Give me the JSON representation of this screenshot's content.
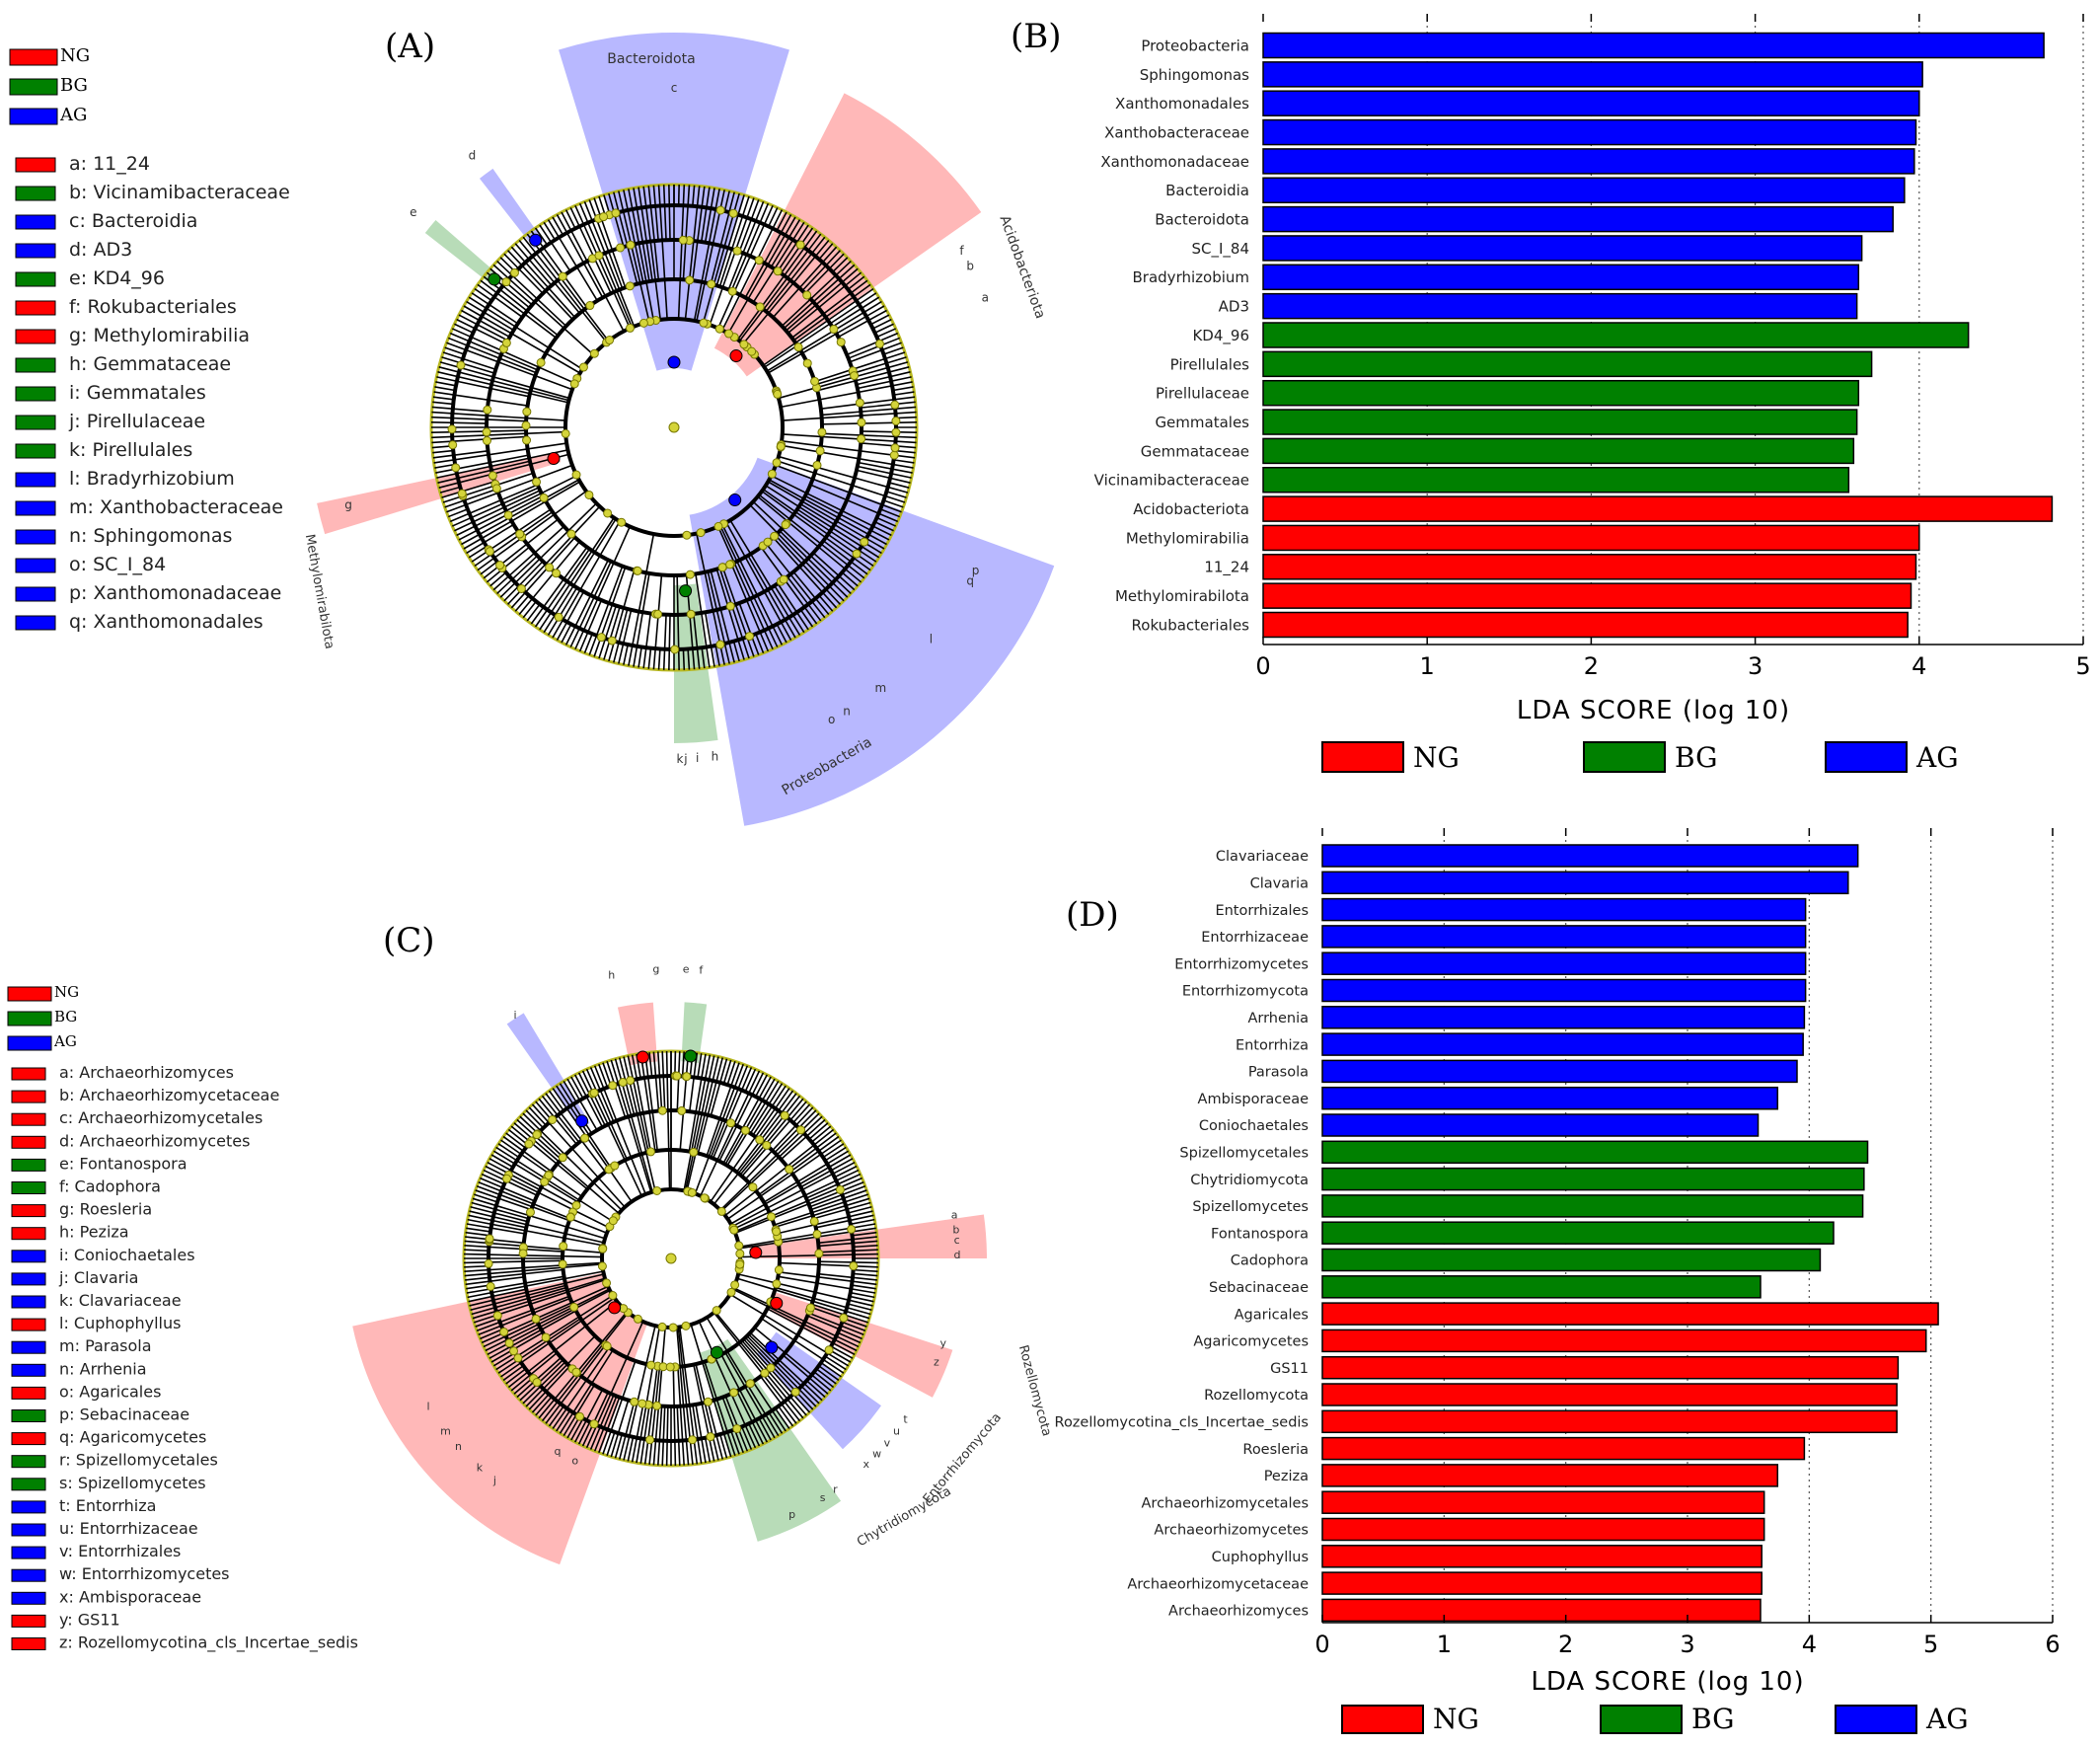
{
  "colors": {
    "NG": "#ff0000",
    "BG": "#008000",
    "AG": "#0000ff"
  },
  "panels": {
    "A": {
      "label": "(A)",
      "group_legend": [
        {
          "label": "NG",
          "group": "NG"
        },
        {
          "label": "BG",
          "group": "BG"
        },
        {
          "label": "AG",
          "group": "AG"
        }
      ],
      "taxa_legend": [
        {
          "label": "a: 11_24",
          "group": "NG"
        },
        {
          "label": "b: Vicinamibacteraceae",
          "group": "BG"
        },
        {
          "label": "c: Bacteroidia",
          "group": "AG"
        },
        {
          "label": "d: AD3",
          "group": "AG"
        },
        {
          "label": "e: KD4_96",
          "group": "BG"
        },
        {
          "label": "f: Rokubacteriales",
          "group": "NG"
        },
        {
          "label": "g: Methylomirabilia",
          "group": "NG"
        },
        {
          "label": "h: Gemmataceae",
          "group": "BG"
        },
        {
          "label": "i: Gemmatales",
          "group": "BG"
        },
        {
          "label": "j: Pirellulaceae",
          "group": "BG"
        },
        {
          "label": "k: Pirellulales",
          "group": "BG"
        },
        {
          "label": "l: Bradyrhizobium",
          "group": "AG"
        },
        {
          "label": "m: Xanthobacteraceae",
          "group": "AG"
        },
        {
          "label": "n: Sphingomonas",
          "group": "AG"
        },
        {
          "label": "o: SC_I_84",
          "group": "AG"
        },
        {
          "label": "p: Xanthomonadaceae",
          "group": "AG"
        },
        {
          "label": "q: Xanthomonadales",
          "group": "AG"
        }
      ],
      "clado_labels": [
        "Bacteroidota",
        "Acidobacteriota",
        "Proteobacteria",
        "Methylomirabilota"
      ],
      "clado_letters": [
        "a",
        "b",
        "c",
        "d",
        "e",
        "f",
        "g",
        "h",
        "i",
        "j",
        "k",
        "l",
        "m",
        "n",
        "o",
        "p",
        "q"
      ]
    },
    "C": {
      "label": "(C)",
      "group_legend": [
        {
          "label": "NG",
          "group": "NG"
        },
        {
          "label": "BG",
          "group": "BG"
        },
        {
          "label": "AG",
          "group": "AG"
        }
      ],
      "taxa_legend": [
        {
          "label": "a: Archaeorhizomyces",
          "group": "NG"
        },
        {
          "label": "b: Archaeorhizomycetaceae",
          "group": "NG"
        },
        {
          "label": "c: Archaeorhizomycetales",
          "group": "NG"
        },
        {
          "label": "d: Archaeorhizomycetes",
          "group": "NG"
        },
        {
          "label": "e: Fontanospora",
          "group": "BG"
        },
        {
          "label": "f: Cadophora",
          "group": "BG"
        },
        {
          "label": "g: Roesleria",
          "group": "NG"
        },
        {
          "label": "h: Peziza",
          "group": "NG"
        },
        {
          "label": "i: Coniochaetales",
          "group": "AG"
        },
        {
          "label": "j: Clavaria",
          "group": "AG"
        },
        {
          "label": "k: Clavariaceae",
          "group": "AG"
        },
        {
          "label": "l: Cuphophyllus",
          "group": "NG"
        },
        {
          "label": "m: Parasola",
          "group": "AG"
        },
        {
          "label": "n: Arrhenia",
          "group": "AG"
        },
        {
          "label": "o: Agaricales",
          "group": "NG"
        },
        {
          "label": "p: Sebacinaceae",
          "group": "BG"
        },
        {
          "label": "q: Agaricomycetes",
          "group": "NG"
        },
        {
          "label": "r: Spizellomycetales",
          "group": "BG"
        },
        {
          "label": "s: Spizellomycetes",
          "group": "BG"
        },
        {
          "label": "t: Entorrhiza",
          "group": "AG"
        },
        {
          "label": "u: Entorrhizaceae",
          "group": "AG"
        },
        {
          "label": "v: Entorrhizales",
          "group": "AG"
        },
        {
          "label": "w: Entorrhizomycetes",
          "group": "AG"
        },
        {
          "label": "x: Ambisporaceae",
          "group": "AG"
        },
        {
          "label": "y: GS11",
          "group": "NG"
        },
        {
          "label": "z: Rozellomycotina_cls_Incertae_sedis",
          "group": "NG"
        }
      ],
      "clado_labels": [
        "Rozellomycota",
        "Entorrhizomycota",
        "Chytridiomycota"
      ],
      "clado_letters": [
        "a",
        "b",
        "c",
        "d",
        "e",
        "f",
        "g",
        "h",
        "i",
        "j",
        "k",
        "l",
        "m",
        "n",
        "o",
        "p",
        "q",
        "r",
        "s",
        "t",
        "u",
        "v",
        "w",
        "x",
        "y",
        "z"
      ]
    },
    "B": {
      "label": "(B)"
    },
    "D": {
      "label": "(D)"
    }
  },
  "chart_data": [
    {
      "panel": "B",
      "type": "bar",
      "orientation": "horizontal",
      "xlabel": "LDA SCORE (log 10)",
      "xlim": [
        0,
        5
      ],
      "xticks": [
        0,
        1,
        2,
        3,
        4,
        5
      ],
      "legend": [
        "NG",
        "BG",
        "AG"
      ],
      "bars": [
        {
          "label": "Proteobacteria",
          "value": 4.76,
          "group": "AG"
        },
        {
          "label": "Sphingomonas",
          "value": 4.02,
          "group": "AG"
        },
        {
          "label": "Xanthomonadales",
          "value": 4.0,
          "group": "AG"
        },
        {
          "label": "Xanthobacteraceae",
          "value": 3.98,
          "group": "AG"
        },
        {
          "label": "Xanthomonadaceae",
          "value": 3.97,
          "group": "AG"
        },
        {
          "label": "Bacteroidia",
          "value": 3.91,
          "group": "AG"
        },
        {
          "label": "Bacteroidota",
          "value": 3.84,
          "group": "AG"
        },
        {
          "label": "SC_I_84",
          "value": 3.65,
          "group": "AG"
        },
        {
          "label": "Bradyrhizobium",
          "value": 3.63,
          "group": "AG"
        },
        {
          "label": "AD3",
          "value": 3.62,
          "group": "AG"
        },
        {
          "label": "KD4_96",
          "value": 4.3,
          "group": "BG"
        },
        {
          "label": "Pirellulales",
          "value": 3.71,
          "group": "BG"
        },
        {
          "label": "Pirellulaceae",
          "value": 3.63,
          "group": "BG"
        },
        {
          "label": "Gemmatales",
          "value": 3.62,
          "group": "BG"
        },
        {
          "label": "Gemmataceae",
          "value": 3.6,
          "group": "BG"
        },
        {
          "label": "Vicinamibacteraceae",
          "value": 3.57,
          "group": "BG"
        },
        {
          "label": "Acidobacteriota",
          "value": 4.81,
          "group": "NG"
        },
        {
          "label": "Methylomirabilia",
          "value": 4.0,
          "group": "NG"
        },
        {
          "label": "11_24",
          "value": 3.98,
          "group": "NG"
        },
        {
          "label": "Methylomirabilota",
          "value": 3.95,
          "group": "NG"
        },
        {
          "label": "Rokubacteriales",
          "value": 3.93,
          "group": "NG"
        }
      ]
    },
    {
      "panel": "D",
      "type": "bar",
      "orientation": "horizontal",
      "xlabel": "LDA SCORE (log 10)",
      "xlim": [
        0,
        6
      ],
      "xticks": [
        0,
        1,
        2,
        3,
        4,
        5,
        6
      ],
      "legend": [
        "NG",
        "BG",
        "AG"
      ],
      "bars": [
        {
          "label": "Clavariaceae",
          "value": 4.4,
          "group": "AG"
        },
        {
          "label": "Clavaria",
          "value": 4.32,
          "group": "AG"
        },
        {
          "label": "Entorrhizales",
          "value": 3.97,
          "group": "AG"
        },
        {
          "label": "Entorrhizaceae",
          "value": 3.97,
          "group": "AG"
        },
        {
          "label": "Entorrhizomycetes",
          "value": 3.97,
          "group": "AG"
        },
        {
          "label": "Entorrhizomycota",
          "value": 3.97,
          "group": "AG"
        },
        {
          "label": "Arrhenia",
          "value": 3.96,
          "group": "AG"
        },
        {
          "label": "Entorrhiza",
          "value": 3.95,
          "group": "AG"
        },
        {
          "label": "Parasola",
          "value": 3.9,
          "group": "AG"
        },
        {
          "label": "Ambisporaceae",
          "value": 3.74,
          "group": "AG"
        },
        {
          "label": "Coniochaetales",
          "value": 3.58,
          "group": "AG"
        },
        {
          "label": "Spizellomycetales",
          "value": 4.48,
          "group": "BG"
        },
        {
          "label": "Chytridiomycota",
          "value": 4.45,
          "group": "BG"
        },
        {
          "label": "Spizellomycetes",
          "value": 4.44,
          "group": "BG"
        },
        {
          "label": "Fontanospora",
          "value": 4.2,
          "group": "BG"
        },
        {
          "label": "Cadophora",
          "value": 4.09,
          "group": "BG"
        },
        {
          "label": "Sebacinaceae",
          "value": 3.6,
          "group": "BG"
        },
        {
          "label": "Agaricales",
          "value": 5.06,
          "group": "NG"
        },
        {
          "label": "Agaricomycetes",
          "value": 4.96,
          "group": "NG"
        },
        {
          "label": "GS11",
          "value": 4.73,
          "group": "NG"
        },
        {
          "label": "Rozellomycota",
          "value": 4.72,
          "group": "NG"
        },
        {
          "label": "Rozellomycotina_cls_Incertae_sedis",
          "value": 4.72,
          "group": "NG"
        },
        {
          "label": "Roesleria",
          "value": 3.96,
          "group": "NG"
        },
        {
          "label": "Peziza",
          "value": 3.74,
          "group": "NG"
        },
        {
          "label": "Archaeorhizomycetales",
          "value": 3.63,
          "group": "NG"
        },
        {
          "label": "Archaeorhizomycetes",
          "value": 3.63,
          "group": "NG"
        },
        {
          "label": "Cuphophyllus",
          "value": 3.61,
          "group": "NG"
        },
        {
          "label": "Archaeorhizomycetaceae",
          "value": 3.61,
          "group": "NG"
        },
        {
          "label": "Archaeorhizomyces",
          "value": 3.6,
          "group": "NG"
        }
      ]
    }
  ]
}
